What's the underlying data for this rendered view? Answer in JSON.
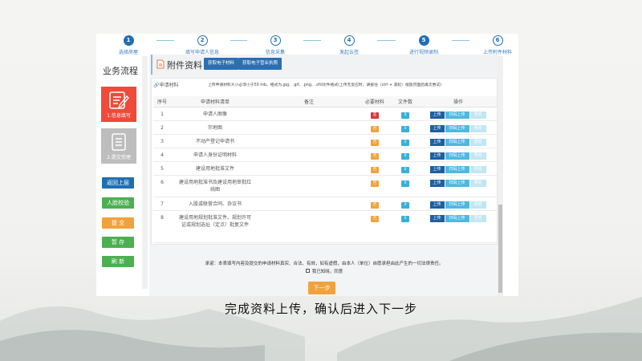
{
  "steps": [
    {
      "num": "1",
      "label": "选择房屋",
      "active": true
    },
    {
      "num": "2",
      "label": "填写申请人信息",
      "active": false
    },
    {
      "num": "3",
      "label": "信息采集",
      "active": false
    },
    {
      "num": "4",
      "label": "发起云签",
      "active": false
    },
    {
      "num": "5",
      "label": "进行视频录制",
      "active": true
    },
    {
      "num": "6",
      "label": "上传附件材料",
      "active": false
    }
  ],
  "sidebar": {
    "title": "业务流程",
    "cards": [
      {
        "label": "1.信息填写",
        "color": "#f04a3a"
      },
      {
        "label": "2.提交受理",
        "color": "#bdbdbd"
      }
    ],
    "buttons": [
      {
        "label": "返回上层",
        "color": "#1f6fb2"
      },
      {
        "label": "人脸校验",
        "color": "#4caf50"
      },
      {
        "label": "提 交",
        "color": "#f0a33c"
      },
      {
        "label": "暂 存",
        "color": "#4caf50"
      },
      {
        "label": "刷 新",
        "color": "#4caf50"
      }
    ]
  },
  "header": {
    "title": "附件资料",
    "btn1": "获取电子材料",
    "btn2": "获取电子营业执照"
  },
  "panel": {
    "title": "申请材料",
    "note": "上传申请材料大小必须小于50 mb，格式为.jpg、.gif、.png、.ofd文件格式(上传无反应时，请按住（ctrl + 滚轮）缩放页面后再次尝试)"
  },
  "table": {
    "headers": [
      "序号",
      "申请材料清单",
      "备注",
      "必要材料",
      "文件数",
      "操作"
    ],
    "rows": [
      {
        "no": "1",
        "name": "申请人图像",
        "note": "",
        "required": "是",
        "count": "0"
      },
      {
        "no": "2",
        "name": "宗地图",
        "note": "",
        "required": "否",
        "count": "0"
      },
      {
        "no": "3",
        "name": "不动产登记申请书",
        "note": "",
        "required": "否",
        "count": "0"
      },
      {
        "no": "4",
        "name": "申请人身份证明材料",
        "note": "",
        "required": "否",
        "count": "0"
      },
      {
        "no": "5",
        "name": "建设用地批准文件",
        "note": "",
        "required": "否",
        "count": "0"
      },
      {
        "no": "6",
        "name": "建设用地批准书及建设用地审批红线图",
        "note": "",
        "required": "否",
        "count": "0"
      },
      {
        "no": "7",
        "name": "入股或联营合同、协议书",
        "note": "",
        "required": "否",
        "count": "0"
      },
      {
        "no": "8",
        "name": "建设用地规划批准文件、规划许可证或规划选址（定点）批复文件",
        "note": "",
        "required": "否",
        "count": "0"
      }
    ],
    "actions": {
      "upload": "上传",
      "scan": "扫码上传",
      "preview": "预览"
    }
  },
  "promise": "承诺：本表填写内容及提交的申请材料真实、合法、有效，如有虚假，由本人（单位）自愿承担由此产生的一切法律责任。",
  "agree": "我已知晓，同意",
  "next": "下一步",
  "caption": "完成资料上传，确认后进入下一步"
}
